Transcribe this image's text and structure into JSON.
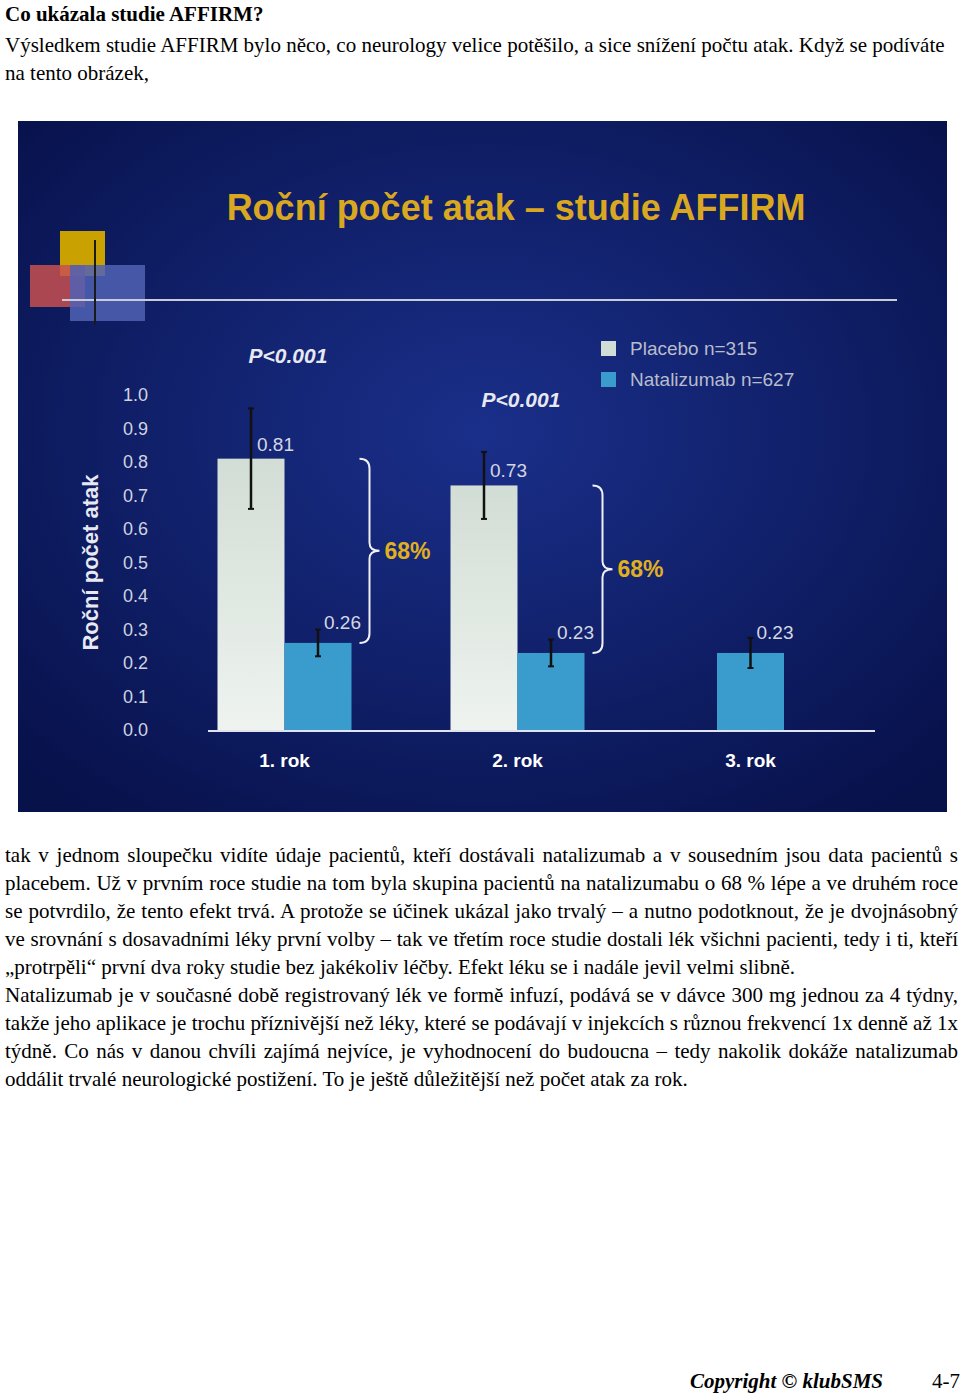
{
  "heading": "Co ukázala studie AFFIRM?",
  "intro": "Výsledkem studie AFFIRM bylo něco, co neurology velice potěšilo, a sice snížení počtu atak. Když se podíváte na tento obrázek,",
  "chart_data": {
    "type": "bar",
    "title": "Roční počet atak – studie AFFIRM",
    "y_label": "Roční počet atak",
    "categories": [
      "1. rok",
      "2. rok",
      "3. rok"
    ],
    "series": [
      {
        "name": "Placebo n=315",
        "color": "#d2ddd5",
        "values": [
          0.81,
          0.73,
          null
        ],
        "errors": [
          0.15,
          0.1,
          null
        ]
      },
      {
        "name": "Natalizumab n=627",
        "color": "#3a9ccc",
        "values": [
          0.26,
          0.23,
          0.23
        ],
        "errors": [
          0.04,
          0.04,
          0.045
        ]
      }
    ],
    "p_values": [
      "P<0.001",
      "P<0.001",
      null
    ],
    "differences": [
      68,
      68,
      null
    ],
    "difference_labels": [
      "68%",
      "68%",
      null
    ],
    "ylim": [
      0,
      1
    ],
    "yticks": [
      {
        "value": 0,
        "label": "0.0"
      },
      {
        "value": 0.1,
        "label": "0.1"
      },
      {
        "value": 0.2,
        "label": "0.2"
      },
      {
        "value": 0.3,
        "label": "0.3"
      },
      {
        "value": 0.4,
        "label": "0.4"
      },
      {
        "value": 0.5,
        "label": "0.5"
      },
      {
        "value": 0.6,
        "label": "0.6"
      },
      {
        "value": 0.7,
        "label": "0.7"
      },
      {
        "value": 0.8,
        "label": "0.8"
      },
      {
        "value": 0.9,
        "label": "0.9"
      },
      {
        "value": 1,
        "label": "1.0"
      }
    ],
    "grid": false,
    "legend": "top-right",
    "data_labels": true
  },
  "paragraphs": [
    "tak v jednom sloupečku vidíte údaje pacientů, kteří dostávali natalizumab a v sousedním jsou data pacientů s placebem. Už v prvním roce studie na tom byla skupina pacientů na natalizumabu o 68 % lépe a ve druhém roce se potvrdilo, že tento efekt trvá. A protože se účinek ukázal jako trvalý – a nutno podotknout, že je dvojnásobný ve srovnání s dosavadními léky první volby – tak ve třetím roce studie dostali lék všichni pacienti, tedy i ti, kteří „protrpěli“ první dva roky studie bez jakékoliv léčby. Efekt léku se i nadále jevil velmi slibně.",
    "Natalizumab je v současné době registrovaný lék ve formě infuzí, podává se v dávce 300 mg jednou za 4 týdny, takže jeho aplikace je trochu příznivější než léky, které se podávají v injekcích s různou frekvencí 1x denně až 1x týdně. Co nás v danou chvíli zajímá nejvíce, je vyhodnocení do budoucna – tedy nakolik dokáže natalizumab oddálit trvalé neurologické postižení. To je ještě důležitější než počet atak za rok."
  ],
  "footer": {
    "copyright": "Copyright © klubSMS",
    "page": "4-7"
  }
}
